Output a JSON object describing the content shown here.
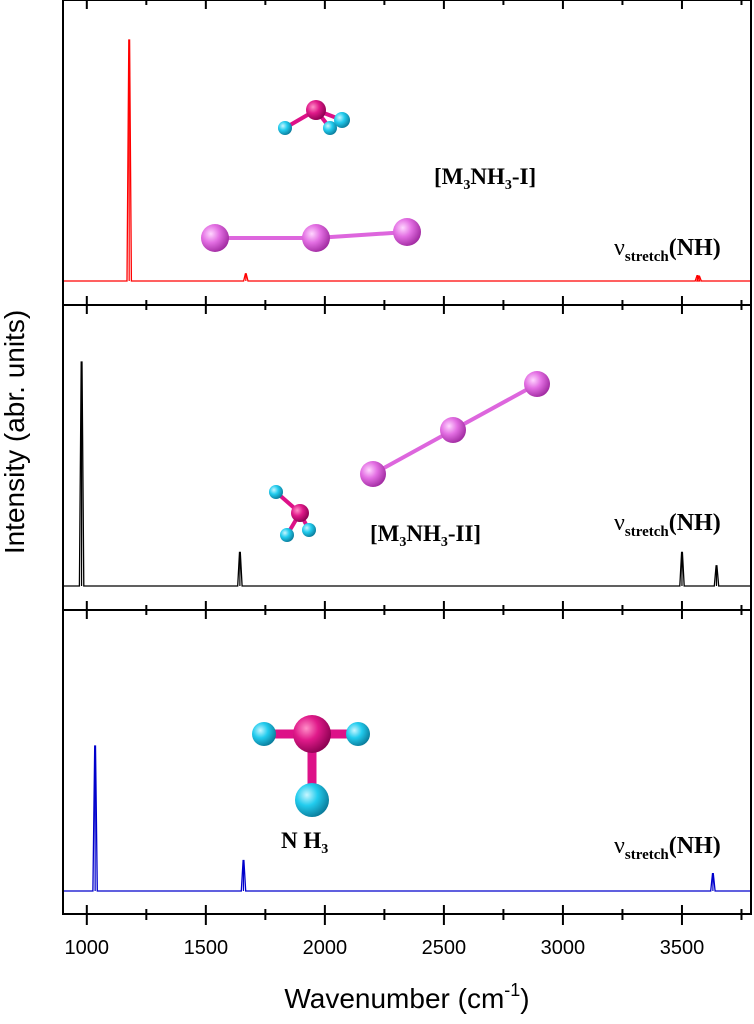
{
  "chart_data": {
    "type": "line",
    "xlabel": "Wavenumber (cm",
    "xlabel_sup": "-1",
    "xlabel_close": ")",
    "ylabel": "Intensity (abr. units)",
    "xlim": [
      900,
      3790
    ],
    "x_major_ticks": [
      1000,
      1500,
      2000,
      2500,
      3000,
      3500
    ],
    "x_tick_labels": [
      "1000",
      "1500",
      "2000",
      "2500",
      "3000",
      "3500"
    ],
    "x_minor_ticks": [
      1250,
      1750,
      2250,
      2750,
      3250,
      3750
    ],
    "panels": [
      {
        "label": "[M3NH3-I]",
        "color": "#ff0000",
        "nu_label": "ν",
        "nu_sub": "stretch",
        "nu_suffix": "(NH)",
        "peaks": [
          {
            "x": 1178,
            "y": 1.0
          },
          {
            "x": 1668,
            "y": 0.03
          },
          {
            "x": 3565,
            "y": 0.022
          },
          {
            "x": 3572,
            "y": 0.02
          }
        ]
      },
      {
        "label": "[M3NH3-II]",
        "color": "#000000",
        "nu_label": "ν",
        "nu_sub": "stretch",
        "nu_suffix": "(NH)",
        "peaks": [
          {
            "x": 978,
            "y": 1.0
          },
          {
            "x": 1643,
            "y": 0.15
          },
          {
            "x": 3500,
            "y": 0.15
          },
          {
            "x": 3645,
            "y": 0.09
          }
        ]
      },
      {
        "label": "N H3",
        "color": "#0000cc",
        "nu_label": "ν",
        "nu_sub": "stretch",
        "nu_suffix": "(NH)",
        "peaks": [
          {
            "x": 1035,
            "y": 1.0
          },
          {
            "x": 1658,
            "y": 0.21
          },
          {
            "x": 3630,
            "y": 0.12
          }
        ]
      }
    ]
  },
  "colors": {
    "metal_atom": "#dd55dd",
    "nitrogen_atom": "#dd1188",
    "hydrogen_atom": "#22ccee"
  }
}
